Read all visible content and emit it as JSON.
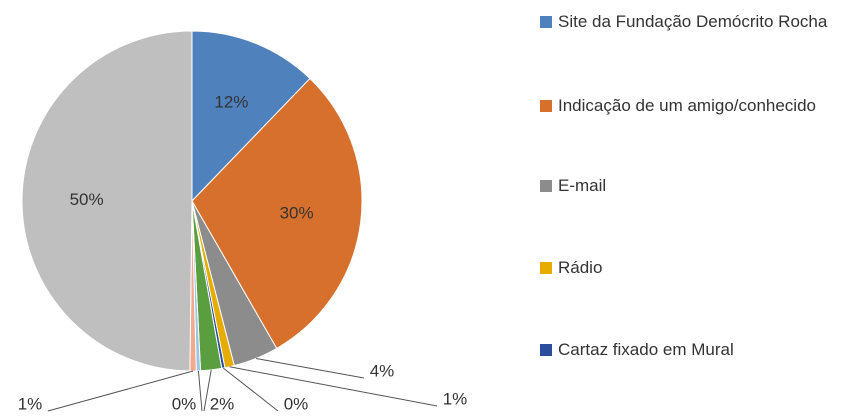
{
  "chart_data": {
    "type": "pie",
    "categories": [
      "Site da Fundação Demócrito Rocha",
      "Indicação de um amigo/conhecido",
      "E-mail",
      "Rádio",
      "Cartaz fixado em Mural",
      null,
      null,
      null,
      null
    ],
    "values": [
      12.2,
      29.5,
      4.3,
      0.9,
      0.3,
      2.0,
      0.4,
      0.6,
      49.8
    ],
    "value_labels": [
      "12%",
      "30%",
      "4%",
      "1%",
      "0%",
      "2%",
      "0%",
      "1%",
      "50%"
    ],
    "colors": [
      "#4f81bd",
      "#d8702d",
      "#8c8c8c",
      "#e6ad00",
      "#2c4d9c",
      "#5b9e3f",
      "#9dc3e6",
      "#f2a98c",
      "#bfbfbf"
    ],
    "legend": "right"
  }
}
